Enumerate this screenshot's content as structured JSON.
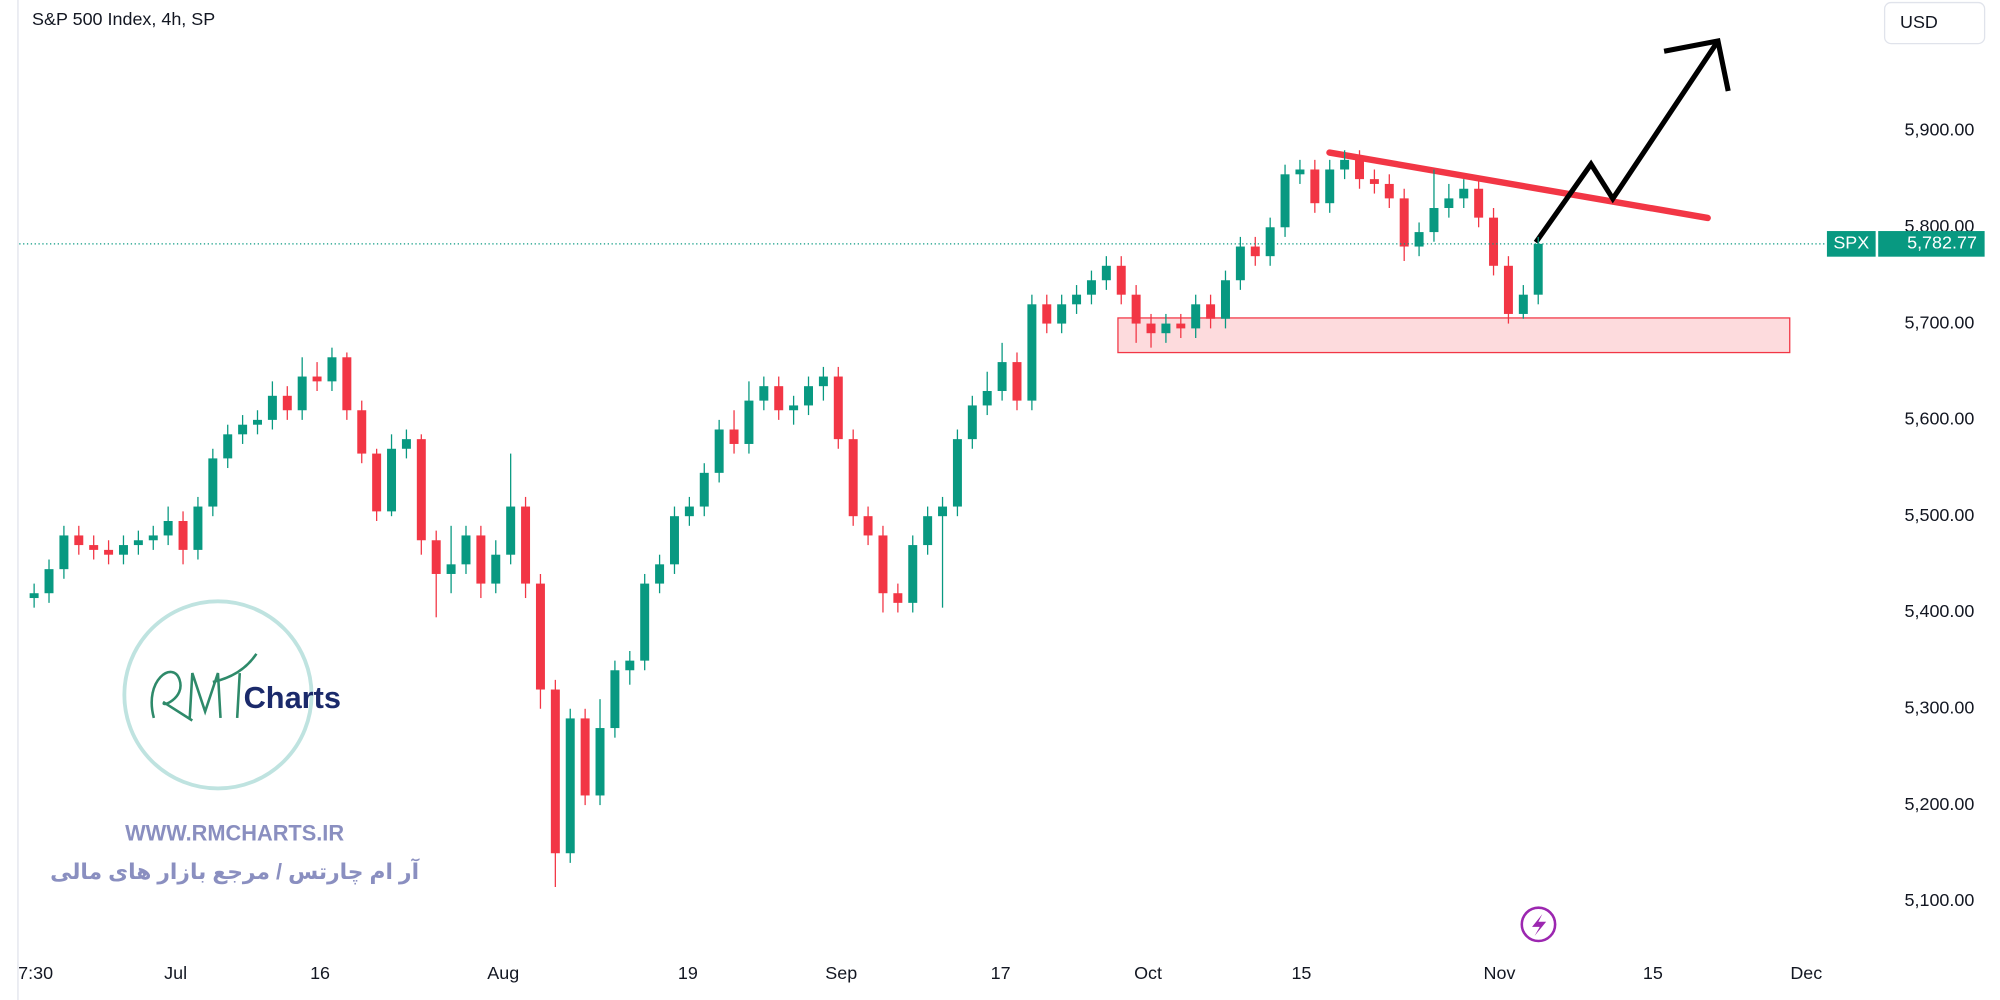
{
  "chart_data": {
    "type": "candlestick",
    "title": "S&P 500 Index, 4h, SP",
    "currency": "USD",
    "symbol": "SPX",
    "last_price": {
      "value": 5782.77,
      "label": "5,782.77"
    },
    "up_color": "#089981",
    "down_color": "#f23645",
    "ylim": [
      5045,
      6036
    ],
    "yticks": [
      {
        "value": 5100,
        "label": "5,100.00"
      },
      {
        "value": 5200,
        "label": "5,200.00"
      },
      {
        "value": 5300,
        "label": "5,300.00"
      },
      {
        "value": 5400,
        "label": "5,400.00"
      },
      {
        "value": 5500,
        "label": "5,500.00"
      },
      {
        "value": 5600,
        "label": "5,600.00"
      },
      {
        "value": 5700,
        "label": "5,700.00"
      },
      {
        "value": 5800,
        "label": "5,800.00"
      },
      {
        "value": 5900,
        "label": "5,900.00"
      }
    ],
    "xlim": [
      -1,
      123.4
    ],
    "xticks": [
      {
        "value": 0.1,
        "label": "7:30"
      },
      {
        "value": 9.5,
        "label": "Jul"
      },
      {
        "value": 19.2,
        "label": "16"
      },
      {
        "value": 31.5,
        "label": "Aug"
      },
      {
        "value": 43.9,
        "label": "19"
      },
      {
        "value": 54.2,
        "label": "Sep"
      },
      {
        "value": 64.9,
        "label": "17"
      },
      {
        "value": 74.8,
        "label": "Oct"
      },
      {
        "value": 85.1,
        "label": "15"
      },
      {
        "value": 98.4,
        "label": "Nov"
      },
      {
        "value": 108.7,
        "label": "15"
      },
      {
        "value": 119.0,
        "label": "Dec"
      }
    ],
    "grid": false,
    "series": {
      "open": [
        5415,
        5420,
        5445,
        5480,
        5470,
        5465,
        5460,
        5470,
        5475,
        5480,
        5495,
        5465,
        5510,
        5560,
        5585,
        5595,
        5600,
        5625,
        5610,
        5645,
        5640,
        5665,
        5610,
        5565,
        5505,
        5570,
        5580,
        5475,
        5440,
        5450,
        5480,
        5430,
        5460,
        5510,
        5430,
        5320,
        5150,
        5290,
        5210,
        5280,
        5340,
        5350,
        5430,
        5450,
        5500,
        5510,
        5545,
        5590,
        5575,
        5620,
        5635,
        5610,
        5615,
        5635,
        5645,
        5580,
        5500,
        5480,
        5420,
        5410,
        5470,
        5500,
        5510,
        5580,
        5615,
        5630,
        5660,
        5620,
        5720,
        5700,
        5720,
        5730,
        5745,
        5760,
        5730,
        5700,
        5690,
        5700,
        5695,
        5720,
        5705,
        5745,
        5780,
        5770,
        5800,
        5855,
        5860,
        5825,
        5860,
        5870,
        5850,
        5845,
        5830,
        5780,
        5795,
        5820,
        5830,
        5840,
        5810,
        5760,
        5710,
        5730
      ],
      "high": [
        5430,
        5455,
        5490,
        5490,
        5480,
        5475,
        5480,
        5485,
        5490,
        5510,
        5505,
        5520,
        5570,
        5595,
        5605,
        5610,
        5640,
        5635,
        5665,
        5660,
        5675,
        5670,
        5620,
        5570,
        5585,
        5590,
        5585,
        5485,
        5490,
        5490,
        5490,
        5475,
        5565,
        5520,
        5440,
        5330,
        5300,
        5300,
        5310,
        5350,
        5360,
        5440,
        5460,
        5510,
        5520,
        5555,
        5600,
        5610,
        5640,
        5645,
        5645,
        5625,
        5645,
        5655,
        5655,
        5590,
        5510,
        5490,
        5430,
        5480,
        5510,
        5520,
        5590,
        5625,
        5650,
        5680,
        5670,
        5730,
        5730,
        5730,
        5740,
        5755,
        5770,
        5770,
        5740,
        5710,
        5710,
        5710,
        5730,
        5730,
        5755,
        5790,
        5790,
        5810,
        5865,
        5870,
        5870,
        5870,
        5880,
        5880,
        5860,
        5855,
        5840,
        5805,
        5860,
        5845,
        5850,
        5850,
        5820,
        5770,
        5740,
        5790
      ],
      "low": [
        5405,
        5410,
        5435,
        5460,
        5455,
        5450,
        5450,
        5460,
        5465,
        5470,
        5450,
        5455,
        5500,
        5550,
        5575,
        5585,
        5590,
        5600,
        5600,
        5630,
        5630,
        5600,
        5555,
        5495,
        5500,
        5560,
        5460,
        5395,
        5420,
        5440,
        5415,
        5420,
        5450,
        5415,
        5300,
        5115,
        5140,
        5200,
        5200,
        5270,
        5325,
        5340,
        5420,
        5440,
        5490,
        5500,
        5535,
        5565,
        5565,
        5610,
        5600,
        5595,
        5605,
        5620,
        5570,
        5490,
        5470,
        5400,
        5400,
        5400,
        5460,
        5405,
        5500,
        5570,
        5605,
        5620,
        5610,
        5610,
        5690,
        5690,
        5710,
        5720,
        5735,
        5720,
        5680,
        5675,
        5680,
        5685,
        5685,
        5695,
        5695,
        5735,
        5760,
        5760,
        5790,
        5845,
        5815,
        5815,
        5850,
        5840,
        5835,
        5820,
        5765,
        5770,
        5785,
        5810,
        5820,
        5800,
        5750,
        5700,
        5705,
        5720
      ],
      "close": [
        5420,
        5445,
        5480,
        5470,
        5465,
        5460,
        5470,
        5475,
        5480,
        5495,
        5465,
        5510,
        5560,
        5585,
        5595,
        5600,
        5625,
        5610,
        5645,
        5640,
        5665,
        5610,
        5565,
        5505,
        5570,
        5580,
        5475,
        5440,
        5450,
        5480,
        5430,
        5460,
        5510,
        5430,
        5320,
        5150,
        5290,
        5210,
        5280,
        5340,
        5350,
        5430,
        5450,
        5500,
        5510,
        5545,
        5590,
        5575,
        5620,
        5635,
        5610,
        5615,
        5635,
        5645,
        5580,
        5500,
        5480,
        5420,
        5410,
        5470,
        5500,
        5510,
        5580,
        5615,
        5630,
        5660,
        5620,
        5720,
        5700,
        5720,
        5730,
        5745,
        5760,
        5730,
        5700,
        5690,
        5700,
        5695,
        5720,
        5705,
        5745,
        5780,
        5770,
        5800,
        5855,
        5860,
        5825,
        5860,
        5870,
        5850,
        5845,
        5830,
        5780,
        5795,
        5820,
        5830,
        5840,
        5810,
        5760,
        5710,
        5730,
        5782.77
      ]
    }
  },
  "watermark": {
    "brand": "Charts",
    "url": "WWW.RMCHARTS.IR",
    "tagline": "آر ام چارتس / مرجع بازار های مالی"
  }
}
